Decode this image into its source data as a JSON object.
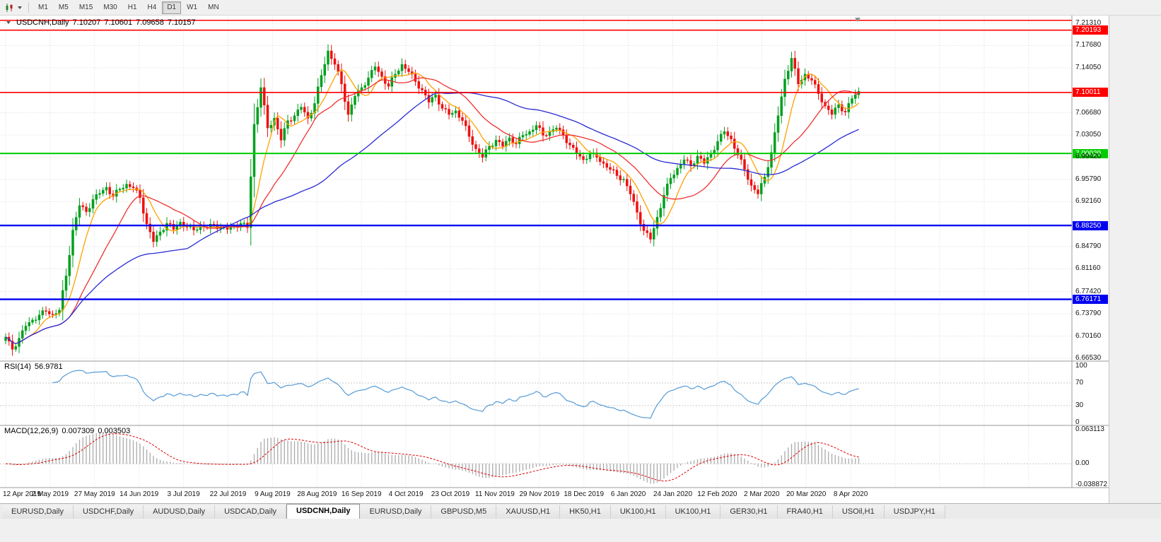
{
  "toolbar": {
    "timeframes": [
      "M1",
      "M5",
      "M15",
      "M30",
      "H1",
      "H4",
      "D1",
      "W1",
      "MN"
    ],
    "active_timeframe": "D1"
  },
  "chart_header": {
    "symbol_line": "USDCNH,Daily",
    "open": "7.10207",
    "high": "7.10601",
    "low": "7.09658",
    "close": "7.10157"
  },
  "rsi_panel": {
    "label": "RSI(14)",
    "value": "56.9781",
    "scale_labels": [
      100,
      70,
      30,
      0
    ]
  },
  "macd_panel": {
    "label": "MACD(12,26,9)",
    "macd_value": "0.007309",
    "signal_value": "0.003503",
    "scale_max": "0.063113",
    "scale_zero": "0.00",
    "scale_min": "-0.038872"
  },
  "tabs": [
    {
      "label": "EURUSD,Daily",
      "active": false
    },
    {
      "label": "USDCHF,Daily",
      "active": false
    },
    {
      "label": "AUDUSD,Daily",
      "active": false
    },
    {
      "label": "USDCAD,Daily",
      "active": false
    },
    {
      "label": "USDCNH,Daily",
      "active": true
    },
    {
      "label": "EURUSD,Daily",
      "active": false
    },
    {
      "label": "GBPUSD,M5",
      "active": false
    },
    {
      "label": "XAUUSD,H1",
      "active": false
    },
    {
      "label": "HK50,H1",
      "active": false
    },
    {
      "label": "UK100,H1",
      "active": false
    },
    {
      "label": "UK100,H1",
      "active": false
    },
    {
      "label": "GER30,H1",
      "active": false
    },
    {
      "label": "FRA40,H1",
      "active": false
    },
    {
      "label": "USOil,H1",
      "active": false
    },
    {
      "label": "USDJPY,H1",
      "active": false
    }
  ],
  "chart_data": {
    "type": "candlestick",
    "symbol": "USDCNH",
    "timeframe": "Daily",
    "ylim": [
      6.6653,
      7.2131
    ],
    "price_axis_labels": [
      "7.21310",
      "7.17680",
      "7.14050",
      "7.06680",
      "7.03050",
      "6.99420",
      "6.95790",
      "6.92160",
      "6.84790",
      "6.81160",
      "6.77420",
      "6.73790",
      "6.70160",
      "6.66530"
    ],
    "x_labels": [
      "12 Apr 2019",
      "2 May 2019",
      "27 May 2019",
      "14 Jun 2019",
      "3 Jul 2019",
      "22 Jul 2019",
      "9 Aug 2019",
      "28 Aug 2019",
      "16 Sep 2019",
      "4 Oct 2019",
      "23 Oct 2019",
      "11 Nov 2019",
      "29 Nov 2019",
      "18 Dec 2019",
      "6 Jan 2020",
      "24 Jan 2020",
      "12 Feb 2020",
      "2 Mar 2020",
      "20 Mar 2020",
      "8 Apr 2020"
    ],
    "anchor_closes": [
      6.7,
      6.68,
      6.698,
      6.718,
      6.728,
      6.736,
      6.742,
      6.737,
      6.744,
      6.8,
      6.875,
      6.915,
      6.905,
      6.925,
      6.935,
      6.945,
      6.93,
      6.942,
      6.95,
      6.944,
      6.928,
      6.885,
      6.856,
      6.872,
      6.886,
      6.876,
      6.888,
      6.88,
      6.875,
      6.882,
      6.878,
      6.884,
      6.879,
      6.876,
      6.881,
      6.886,
      6.879,
      7.048,
      7.108,
      7.042,
      7.058,
      7.022,
      7.054,
      7.062,
      7.076,
      7.058,
      7.082,
      7.128,
      7.168,
      7.146,
      7.114,
      7.064,
      7.094,
      7.108,
      7.124,
      7.142,
      7.126,
      7.11,
      7.13,
      7.146,
      7.134,
      7.118,
      7.104,
      7.084,
      7.096,
      7.074,
      7.064,
      7.07,
      7.054,
      7.028,
      7.008,
      6.994,
      7.012,
      7.022,
      7.012,
      7.026,
      7.016,
      7.03,
      7.036,
      7.046,
      7.03,
      7.036,
      7.042,
      7.03,
      7.014,
      7.0,
      6.99,
      7.0,
      6.994,
      6.984,
      6.974,
      6.964,
      6.958,
      6.934,
      6.904,
      6.874,
      6.86,
      6.896,
      6.932,
      6.96,
      6.976,
      6.99,
      6.98,
      6.996,
      6.984,
      7.0,
      7.02,
      7.036,
      7.024,
      6.998,
      6.974,
      6.948,
      6.934,
      6.962,
      7.002,
      7.062,
      7.122,
      7.156,
      7.114,
      7.13,
      7.12,
      7.098,
      7.078,
      7.064,
      7.08,
      7.068,
      7.09,
      7.102
    ],
    "hlines": [
      {
        "price": 7.218,
        "label": "",
        "color": "#FF0000",
        "width": 1.6
      },
      {
        "price": 7.20193,
        "label": "7.20193",
        "color": "#FF0000",
        "width": 1.6
      },
      {
        "price": 7.10011,
        "label": "7.10011",
        "color": "#FF0000",
        "width": 1.6
      },
      {
        "price": 7.00029,
        "label": "7.00029",
        "color": "#00CC00",
        "width": 2
      },
      {
        "price": 6.8825,
        "label": "6.88250",
        "color": "#0000F0",
        "width": 2.4
      },
      {
        "price": 6.76171,
        "label": "6.76171",
        "color": "#0000F0",
        "width": 2.4
      }
    ],
    "moving_averages": [
      {
        "period": 8,
        "color": "#FFA000"
      },
      {
        "period": 20,
        "color": "#F03030"
      },
      {
        "period": 55,
        "color": "#2A2AD4"
      }
    ],
    "rsi": {
      "period": 14,
      "levels": [
        70,
        30
      ],
      "color": "#569BD5",
      "range": [
        0,
        100
      ]
    },
    "macd": {
      "fast": 12,
      "slow": 26,
      "signal": 9,
      "range": [
        -0.038872,
        0.063113
      ],
      "histogram_color": "#AAAAAA",
      "signal_color": "#DD0000"
    },
    "up_color": "#00A01E",
    "down_color": "#EE1111",
    "grid_color": "#DCDCDC"
  }
}
